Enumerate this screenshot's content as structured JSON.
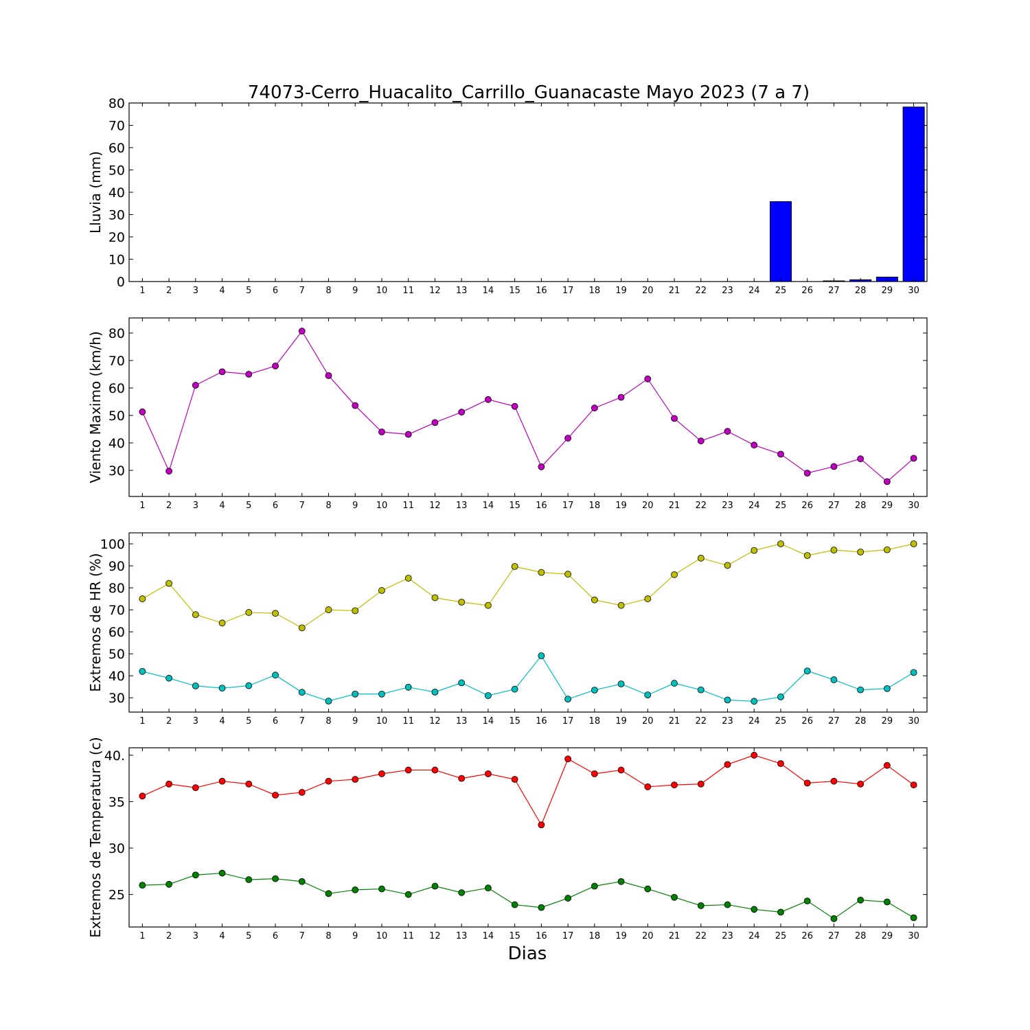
{
  "chart_data": {
    "title": "74073-Cerro_Huacalito_Carrillo_Guanacaste Mayo 2023  (7 a 7)",
    "xlabel": "Dias",
    "x": [
      1,
      2,
      3,
      4,
      5,
      6,
      7,
      8,
      9,
      10,
      11,
      12,
      13,
      14,
      15,
      16,
      17,
      18,
      19,
      20,
      21,
      22,
      23,
      24,
      25,
      26,
      27,
      28,
      29,
      30
    ],
    "panels": [
      {
        "type": "bar",
        "ylabel": "Lluvia (mm)",
        "ylim": [
          0,
          80
        ],
        "yticks": [
          0,
          10,
          20,
          30,
          40,
          50,
          60,
          70,
          80
        ],
        "series": [
          {
            "color": "#0000ff",
            "values": [
              0,
              0,
              0,
              0,
              0,
              0,
              0,
              0,
              0,
              0,
              0,
              0,
              0,
              0,
              0,
              0,
              0,
              0,
              0,
              0,
              0,
              0,
              0,
              0,
              35.8,
              0,
              0.3,
              0.8,
              2.0,
              78.2
            ]
          }
        ]
      },
      {
        "type": "line",
        "ylabel": "Viento Maximo (km/h)",
        "ylim": [
          20.5,
          85.5
        ],
        "yticks": [
          30,
          40,
          50,
          60,
          70,
          80
        ],
        "series": [
          {
            "color": "#bf00bf",
            "values": [
              51.3,
              29.7,
              61.0,
              65.9,
              65.0,
              68.0,
              80.7,
              64.5,
              53.6,
              44.0,
              43.1,
              47.4,
              51.2,
              55.8,
              53.3,
              31.3,
              41.7,
              52.7,
              56.6,
              63.3,
              48.9,
              40.7,
              44.2,
              39.2,
              35.9,
              29.0,
              31.4,
              34.2,
              25.9,
              34.4
            ]
          }
        ]
      },
      {
        "type": "line",
        "ylabel": "Extremos de HR (%)",
        "ylim": [
          23.5,
          105
        ],
        "yticks": [
          30,
          40,
          50,
          60,
          70,
          80,
          90,
          100
        ],
        "series": [
          {
            "color": "#bfbf00",
            "values": [
              75,
              82,
              67.8,
              64,
              68.8,
              68.4,
              61.8,
              70,
              69.6,
              78.8,
              84.4,
              75.5,
              73.5,
              72,
              89.7,
              87,
              86.2,
              74.5,
              72,
              75,
              86,
              93.5,
              90.2,
              97,
              100,
              94.7,
              97.2,
              96.3,
              97.3,
              100
            ]
          },
          {
            "color": "#00bfbf",
            "values": [
              42,
              38.9,
              35.4,
              34.4,
              35.5,
              40.3,
              32.5,
              28.5,
              31.7,
              31.7,
              34.8,
              32.6,
              36.8,
              31,
              33.9,
              49.1,
              29.4,
              33.5,
              36.3,
              31.3,
              36.6,
              33.6,
              29,
              28.4,
              30.4,
              42.2,
              38.2,
              33.6,
              34.2,
              41.5
            ]
          }
        ]
      },
      {
        "type": "line",
        "ylabel": "Extremos de Temperatura (c)",
        "ylim": [
          21.5,
          40.8
        ],
        "yticks": [
          25,
          30,
          35,
          40
        ],
        "ytick_labels": [
          "25",
          "30",
          "35",
          "40."
        ],
        "series": [
          {
            "color": "#ff0000",
            "values": [
              35.6,
              36.9,
              36.5,
              37.2,
              36.9,
              35.7,
              36.0,
              37.2,
              37.4,
              38.0,
              38.4,
              38.4,
              37.5,
              38.0,
              37.4,
              32.5,
              39.6,
              38.0,
              38.4,
              36.6,
              36.8,
              36.9,
              39.0,
              40.0,
              39.1,
              37.0,
              37.2,
              36.9,
              38.9,
              36.8
            ]
          },
          {
            "color": "#008000",
            "values": [
              26.0,
              26.1,
              27.1,
              27.3,
              26.6,
              26.7,
              26.4,
              25.1,
              25.5,
              25.6,
              25.0,
              25.9,
              25.2,
              25.7,
              23.9,
              23.6,
              24.6,
              25.9,
              26.4,
              25.6,
              24.7,
              23.8,
              23.9,
              23.4,
              23.1,
              24.3,
              22.4,
              24.4,
              24.2,
              22.5
            ]
          }
        ]
      }
    ]
  }
}
